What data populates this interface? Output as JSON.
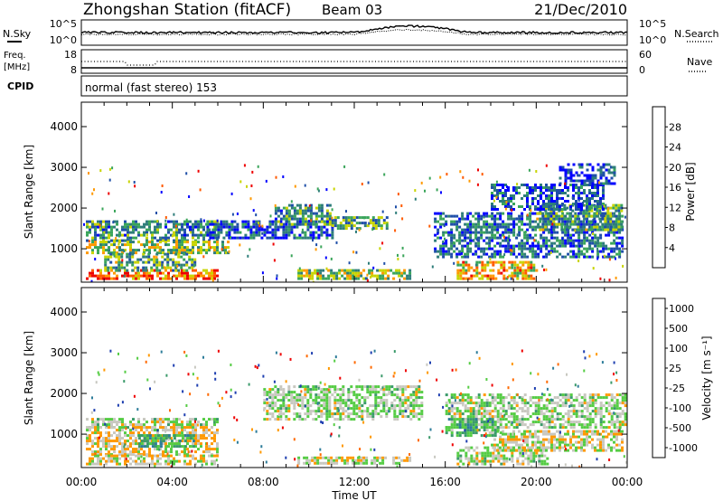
{
  "header": {
    "title": "Zhongshan Station (fitACF)",
    "beam": "Beam 03",
    "date": "21/Dec/2010"
  },
  "noise_panel": {
    "left_label": "N.Sky",
    "right_label": "N.Search",
    "left_ticks": [
      "10^5",
      "10^0"
    ],
    "right_ticks": [
      "10^5",
      "10^0"
    ]
  },
  "freq_panel": {
    "left_label_line1": "Freq.",
    "left_label_line2": "[MHz]",
    "left_ticks": [
      "18",
      "8"
    ],
    "right_ticks": [
      "60",
      "0"
    ],
    "right_label": "Nave"
  },
  "cpid_panel": {
    "label": "CPID",
    "text": "normal (fast stereo) 153"
  },
  "colorbars": {
    "power": {
      "label": "Power [dB]",
      "ticks": [
        "28",
        "24",
        "20",
        "16",
        "12",
        "8",
        "4"
      ],
      "colors": [
        "#0000ff",
        "#1f4fa8",
        "#2e7d7a",
        "#3aa55a",
        "#c8d400",
        "#ff9900",
        "#ff5a00",
        "#ee0000"
      ]
    },
    "velocity": {
      "label": "Velocity [m s⁻¹]",
      "ticks": [
        "1000",
        "500",
        "100",
        "25",
        "-25",
        "-100",
        "-500",
        "-1000"
      ],
      "colors": [
        "#1f3fb0",
        "#2e7d9a",
        "#3a9a6a",
        "#55cc44",
        "#c8c8c0",
        "#ff9900",
        "#ff6a00",
        "#ee0000"
      ]
    }
  },
  "chart_data": [
    {
      "type": "heatmap",
      "title": "",
      "xlabel": "Time UT",
      "ylabel": "Slant Range [km]",
      "x_ticks": [
        "00:00",
        "04:00",
        "08:00",
        "12:00",
        "16:00",
        "20:00",
        "00:00"
      ],
      "x_range_hours": [
        0,
        24
      ],
      "y_ticks": [
        1000,
        2000,
        3000,
        4000
      ],
      "ylim": [
        180,
        4600
      ],
      "colorbar": "Power [dB]",
      "clim": [
        0,
        30
      ],
      "regions": [
        {
          "t0": 0.2,
          "t1": 6.0,
          "r0": 1200,
          "r1": 1700,
          "v": 10
        },
        {
          "t0": 0.2,
          "t1": 6.5,
          "r0": 900,
          "r1": 1200,
          "v": 15
        },
        {
          "t0": 0.2,
          "t1": 6.0,
          "r0": 300,
          "r1": 500,
          "v": 24
        },
        {
          "t0": 1.0,
          "t1": 5.0,
          "r0": 500,
          "r1": 900,
          "v": 12
        },
        {
          "t0": 5.5,
          "t1": 11.0,
          "r0": 1300,
          "r1": 1700,
          "v": 6
        },
        {
          "t0": 8.5,
          "t1": 11.0,
          "r0": 1600,
          "r1": 2100,
          "v": 10
        },
        {
          "t0": 11.0,
          "t1": 13.5,
          "r0": 1500,
          "r1": 1800,
          "v": 12
        },
        {
          "t0": 9.5,
          "t1": 14.5,
          "r0": 300,
          "r1": 500,
          "v": 15
        },
        {
          "t0": 15.5,
          "t1": 23.8,
          "r0": 800,
          "r1": 1900,
          "v": 8
        },
        {
          "t0": 16.5,
          "t1": 20.0,
          "r0": 250,
          "r1": 700,
          "v": 20
        },
        {
          "t0": 20.0,
          "t1": 23.8,
          "r0": 1500,
          "r1": 2100,
          "v": 12
        },
        {
          "t0": 18.0,
          "t1": 23.0,
          "r0": 2000,
          "r1": 2600,
          "v": 6
        },
        {
          "t0": 21.0,
          "t1": 23.5,
          "r0": 2600,
          "r1": 3100,
          "v": 5
        }
      ]
    },
    {
      "type": "heatmap",
      "title": "",
      "xlabel": "Time UT",
      "ylabel": "Slant Range [km]",
      "x_ticks": [
        "00:00",
        "04:00",
        "08:00",
        "12:00",
        "16:00",
        "20:00",
        "00:00"
      ],
      "x_range_hours": [
        0,
        24
      ],
      "y_ticks": [
        1000,
        2000,
        3000,
        4000
      ],
      "ylim": [
        180,
        4600
      ],
      "colorbar": "Velocity [m s⁻¹]",
      "clim": [
        -1000,
        1000
      ],
      "regions": [
        {
          "t0": 0.2,
          "t1": 6.0,
          "r0": 1200,
          "r1": 1400,
          "v": 0
        },
        {
          "t0": 0.2,
          "t1": 6.0,
          "r0": 500,
          "r1": 1200,
          "v": 200
        },
        {
          "t0": 2.5,
          "t1": 5.0,
          "r0": 700,
          "r1": 1000,
          "v": -300
        },
        {
          "t0": 0.2,
          "t1": 6.0,
          "r0": 250,
          "r1": 500,
          "v": 150
        },
        {
          "t0": 8.0,
          "t1": 15.0,
          "r0": 1400,
          "r1": 2200,
          "v": 0
        },
        {
          "t0": 9.5,
          "t1": 14.5,
          "r0": 300,
          "r1": 450,
          "v": 150
        },
        {
          "t0": 16.0,
          "t1": 24.0,
          "r0": 1200,
          "r1": 2000,
          "v": 0
        },
        {
          "t0": 16.5,
          "t1": 20.5,
          "r0": 250,
          "r1": 700,
          "v": 0
        },
        {
          "t0": 18.0,
          "t1": 23.8,
          "r0": 600,
          "r1": 1100,
          "v": 120
        },
        {
          "t0": 16.0,
          "t1": 18.5,
          "r0": 1000,
          "r1": 1400,
          "v": -250
        }
      ]
    }
  ]
}
